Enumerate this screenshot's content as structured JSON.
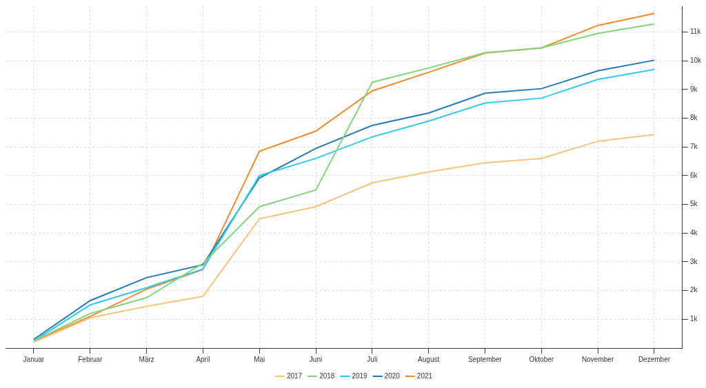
{
  "chart_data": {
    "type": "line",
    "categories": [
      "Januar",
      "Februar",
      "März",
      "April",
      "Mai",
      "Juni",
      "Juli",
      "August",
      "September",
      "Oktober",
      "November",
      "Dezember"
    ],
    "series": [
      {
        "name": "2017",
        "color": "#fbc379",
        "values": [
          200,
          1050,
          1450,
          1800,
          4500,
          4920,
          5750,
          6130,
          6450,
          6600,
          7200,
          7430
        ]
      },
      {
        "name": "2018",
        "color": "#7fd67a",
        "values": [
          250,
          1200,
          1750,
          2950,
          4920,
          5500,
          9250,
          9750,
          10280,
          10450,
          10950,
          11280
        ]
      },
      {
        "name": "2019",
        "color": "#2cc9f0",
        "values": [
          250,
          1500,
          2100,
          2750,
          6000,
          6600,
          7350,
          7900,
          8530,
          8700,
          9350,
          9700
        ]
      },
      {
        "name": "2020",
        "color": "#2179b8",
        "values": [
          300,
          1650,
          2450,
          2900,
          5920,
          6950,
          7750,
          8180,
          8870,
          9030,
          9650,
          10020
        ]
      },
      {
        "name": "2021",
        "color": "#f5892a",
        "values": [
          230,
          1100,
          2050,
          2730,
          6850,
          7550,
          8950,
          9600,
          10270,
          10450,
          11230,
          11650
        ]
      }
    ],
    "ylim": [
      0,
      11900
    ],
    "yticks": [
      {
        "value": 1000,
        "label": "1k"
      },
      {
        "value": 2000,
        "label": "2k"
      },
      {
        "value": 3000,
        "label": "3k"
      },
      {
        "value": 4000,
        "label": "4k"
      },
      {
        "value": 5000,
        "label": "5k"
      },
      {
        "value": 6000,
        "label": "6k"
      },
      {
        "value": 7000,
        "label": "7k"
      },
      {
        "value": 8000,
        "label": "8k"
      },
      {
        "value": 9000,
        "label": "9k"
      },
      {
        "value": 10000,
        "label": "10k"
      },
      {
        "value": 11000,
        "label": "11k"
      }
    ],
    "grid": true,
    "legend": "bottom",
    "line_style": "solid"
  }
}
